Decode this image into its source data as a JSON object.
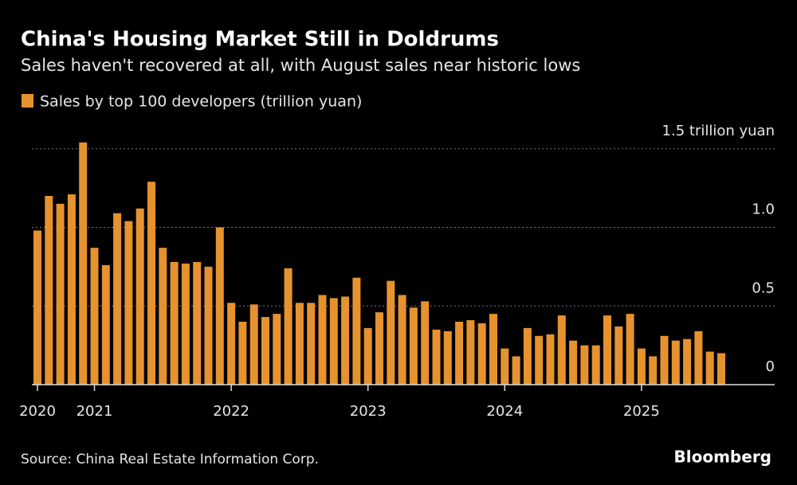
{
  "chart_data": {
    "type": "bar",
    "title": "China's Housing Market Still in Doldrums",
    "subtitle": "Sales haven't recovered at all, with August sales near historic lows",
    "categories": [
      "2020",
      null,
      null,
      null,
      null,
      "2021",
      null,
      null,
      null,
      null,
      null,
      null,
      null,
      null,
      null,
      null,
      null,
      "2022",
      null,
      null,
      null,
      null,
      null,
      null,
      null,
      null,
      null,
      null,
      null,
      "2023",
      null,
      null,
      null,
      null,
      null,
      null,
      null,
      null,
      null,
      null,
      null,
      "2024",
      null,
      null,
      null,
      null,
      null,
      null,
      null,
      null,
      null,
      null,
      null,
      "2025",
      null,
      null,
      null,
      null,
      null,
      null,
      null
    ],
    "series": [
      {
        "name": "Sales by top 100 developers (trillion yuan)",
        "color": "#e6922e",
        "values": [
          0.98,
          1.2,
          1.15,
          1.21,
          1.54,
          0.87,
          0.76,
          1.09,
          1.04,
          1.12,
          1.29,
          0.87,
          0.78,
          0.77,
          0.78,
          0.75,
          1.0,
          0.52,
          0.4,
          0.51,
          0.43,
          0.45,
          0.74,
          0.52,
          0.52,
          0.57,
          0.55,
          0.56,
          0.68,
          0.36,
          0.46,
          0.66,
          0.57,
          0.49,
          0.53,
          0.35,
          0.34,
          0.4,
          0.41,
          0.39,
          0.45,
          0.23,
          0.18,
          0.36,
          0.31,
          0.32,
          0.44,
          0.28,
          0.25,
          0.25,
          0.44,
          0.37,
          0.45,
          0.23,
          0.18,
          0.31,
          0.28,
          0.29,
          0.34,
          0.21,
          0.2
        ]
      }
    ],
    "ylim": [
      0,
      1.6
    ],
    "yticks": [
      0,
      0.5,
      {
        "value": 1,
        "label": "1.0"
      },
      {
        "value": 1.5,
        "label": "1.5 trillion yuan"
      }
    ],
    "grid": true,
    "source": "Source: China Real Estate Information Corp.",
    "brand": "Bloomberg"
  }
}
